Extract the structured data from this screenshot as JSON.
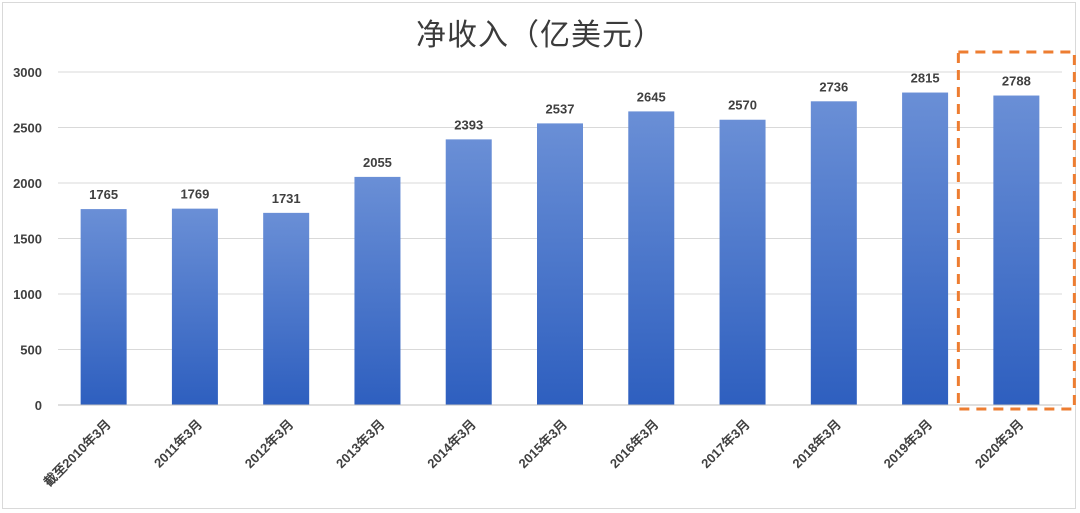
{
  "chart_data": {
    "type": "bar",
    "title": "净收入（亿美元）",
    "categories": [
      "截至2010年3月",
      "2011年3月",
      "2012年3月",
      "2013年3月",
      "2014年3月",
      "2015年3月",
      "2016年3月",
      "2017年3月",
      "2018年3月",
      "2019年3月",
      "2020年3月"
    ],
    "series": [
      {
        "values": [
          1765,
          1769,
          1731,
          2055,
          2393,
          2537,
          2645,
          2570,
          2736,
          2815,
          2788
        ]
      }
    ],
    "y_ticks": [
      0,
      500,
      1000,
      1500,
      2000,
      2500,
      3000
    ],
    "ylim": [
      0,
      3000
    ],
    "grid": true,
    "legend": "none",
    "highlight_category": "2020年3月",
    "colors": {
      "bar_top": "#6a8fd6",
      "bar_bottom": "#2e5fbf",
      "highlight": "#ed7d31",
      "grid": "#d9d9d9",
      "label": "#404040"
    }
  }
}
